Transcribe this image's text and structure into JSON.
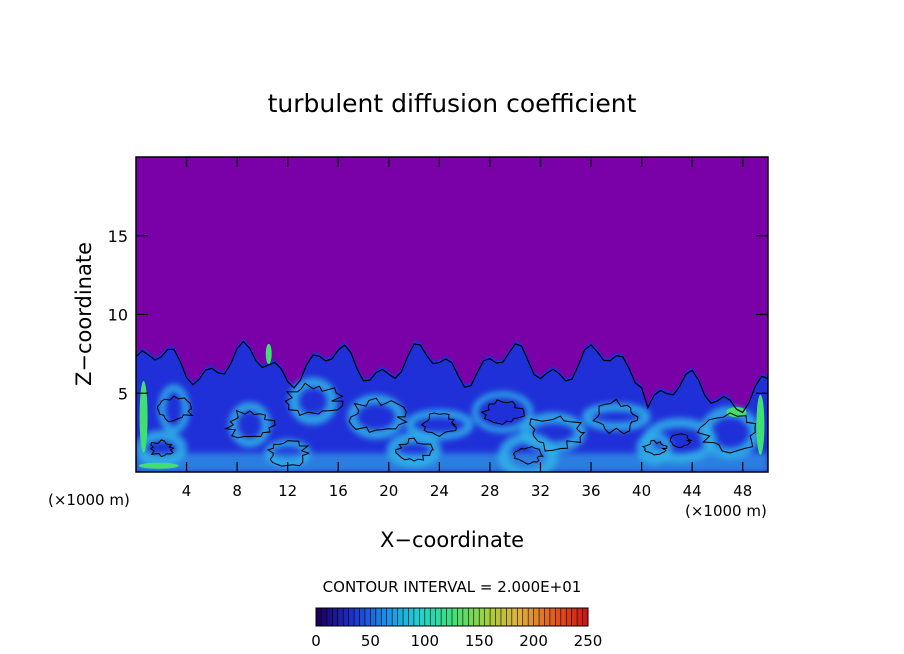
{
  "chart_data": {
    "type": "heatmap",
    "title": "turbulent diffusion coefficient",
    "xlabel": "X−coordinate",
    "ylabel": "Z−coordinate",
    "x_unit_left": "(×1000 m)",
    "x_unit_right": "(×1000 m)",
    "xlim": [
      0,
      50
    ],
    "ylim": [
      0,
      20
    ],
    "x_ticks": [
      4,
      8,
      12,
      16,
      20,
      24,
      28,
      32,
      36,
      40,
      44,
      48
    ],
    "y_ticks": [
      5,
      10,
      15
    ],
    "turbulent_layer_top_approx": 7,
    "contour_interval_text": "CONTOUR INTERVAL = 2.000E+01",
    "colorbar": {
      "min": 0,
      "max": 250,
      "ticks": [
        0,
        50,
        100,
        150,
        200,
        250
      ],
      "colors": [
        "#1a0060",
        "#1f2fc8",
        "#1c8ee8",
        "#22d0d0",
        "#3ee07a",
        "#9ed040",
        "#e0b040",
        "#e06020",
        "#d01818"
      ]
    },
    "colors": {
      "background_field": "#7a00a8",
      "low_layer": "#2030d8",
      "mid_layer": "#30b0e8",
      "high_layer": "#40e070",
      "contour_line": "#000000"
    },
    "grid": false
  }
}
